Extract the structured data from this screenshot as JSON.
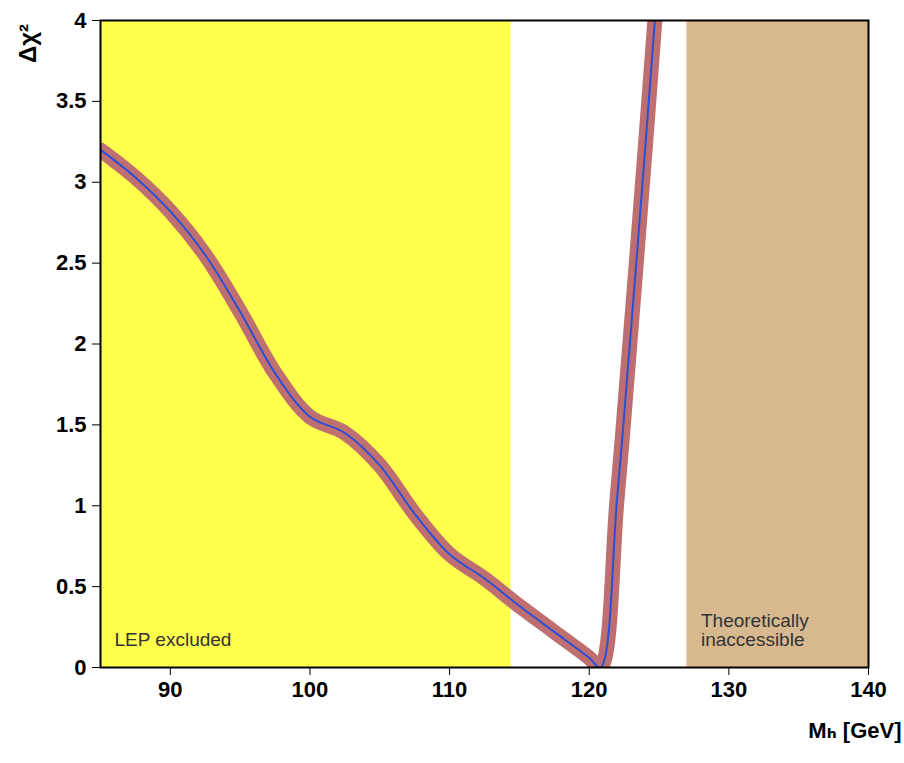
{
  "chart_data": {
    "type": "line",
    "x_label": "Mₕ [GeV]",
    "y_label": "Δχ²",
    "xlim": [
      85,
      140
    ],
    "xticks": [
      90,
      100,
      110,
      120,
      130,
      140
    ],
    "ylim": [
      0,
      4
    ],
    "yticks": [
      0,
      0.5,
      1,
      1.5,
      2,
      2.5,
      3,
      3.5,
      4
    ],
    "grid": false,
    "series": [
      {
        "color": "#2a4fd8",
        "x": [
          85,
          87.5,
          90,
          92.5,
          95,
          97.5,
          100,
          102.5,
          105,
          107.5,
          110,
          112.5,
          115,
          117.5,
          120,
          120.8,
          122,
          123,
          124,
          124.7
        ],
        "values": [
          3.2,
          3.03,
          2.82,
          2.55,
          2.2,
          1.82,
          1.55,
          1.45,
          1.25,
          0.95,
          0.7,
          0.55,
          0.38,
          0.22,
          0.06,
          0,
          1.05,
          2.1,
          3.2,
          4
        ]
      }
    ],
    "regions": [
      {
        "label": "LEP excluded",
        "x0": 85,
        "x1": 114.4,
        "color": "#ffff4d"
      },
      {
        "label": "Theoretically inaccessible",
        "x0": 127,
        "x1": 140,
        "color": "#d8b98f"
      }
    ]
  }
}
